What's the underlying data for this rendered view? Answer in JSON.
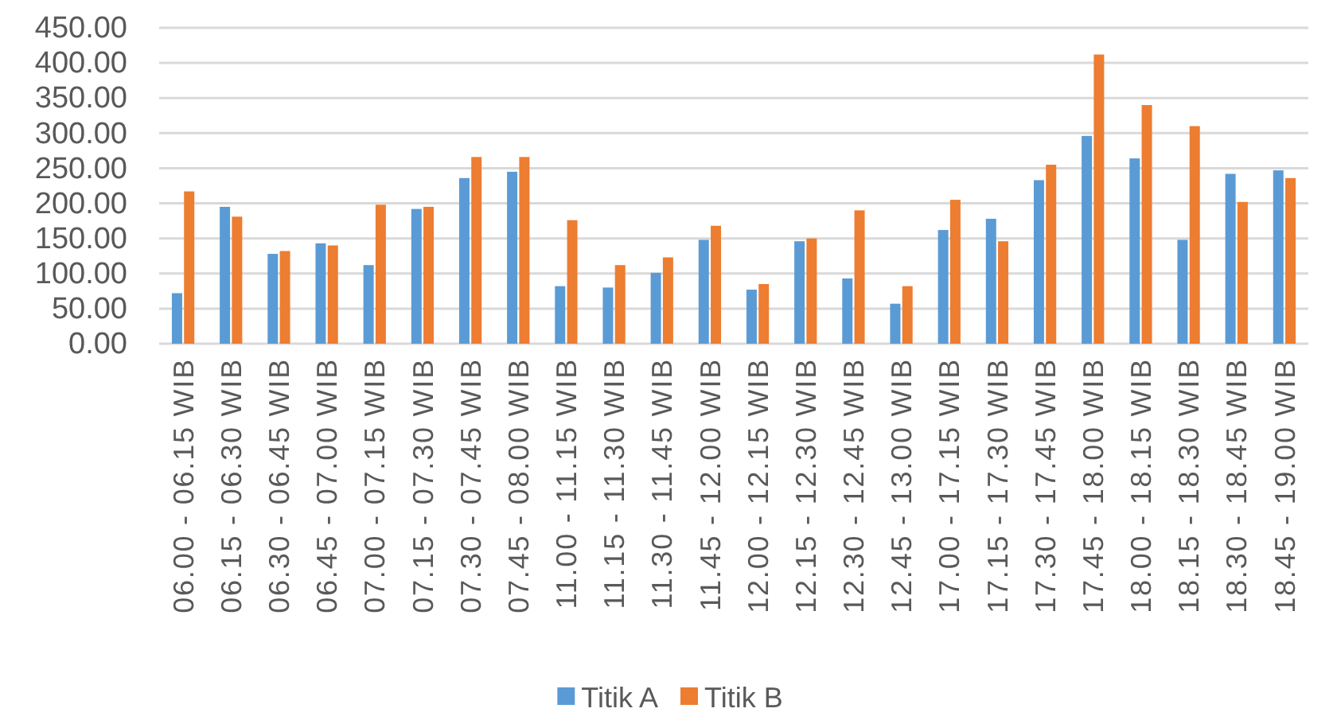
{
  "chart_data": {
    "type": "bar",
    "categories": [
      "06.00 - 06.15 WIB",
      "06.15 - 06.30 WIB",
      "06.30 - 06.45 WIB",
      "06.45 - 07.00 WIB",
      "07.00 - 07.15 WIB",
      "07.15 - 07.30 WIB",
      "07.30 - 07.45 WIB",
      "07.45 - 08.00 WIB",
      "11.00 - 11.15 WIB",
      "11.15 - 11.30 WIB",
      "11.30 - 11.45 WIB",
      "11.45 - 12.00 WIB",
      "12.00 - 12.15 WIB",
      "12.15 - 12.30 WIB",
      "12.30 - 12.45 WIB",
      "12.45 - 13.00 WIB",
      "17.00 - 17.15 WIB",
      "17.15 - 17.30 WIB",
      "17.30 - 17.45 WIB",
      "17.45 - 18.00 WIB",
      "18.00 - 18.15 WIB",
      "18.15 - 18.30 WIB",
      "18.30 - 18.45 WIB",
      "18.45 - 19.00 WIB"
    ],
    "series": [
      {
        "name": "Titik A",
        "color": "#5b9bd5",
        "values": [
          72,
          195,
          128,
          143,
          112,
          192,
          236,
          245,
          82,
          80,
          101,
          148,
          77,
          146,
          93,
          57,
          162,
          178,
          233,
          296,
          264,
          148,
          242,
          247
        ]
      },
      {
        "name": "Titik B",
        "color": "#ed7d31",
        "values": [
          217,
          181,
          132,
          140,
          198,
          195,
          266,
          266,
          176,
          112,
          123,
          168,
          85,
          150,
          190,
          82,
          205,
          146,
          255,
          412,
          340,
          310,
          202,
          236
        ]
      }
    ],
    "ylim": [
      0,
      450
    ],
    "yticks": [
      {
        "value": 0,
        "label": "0.00"
      },
      {
        "value": 50,
        "label": "50.00"
      },
      {
        "value": 100,
        "label": "100.00"
      },
      {
        "value": 150,
        "label": "150.00"
      },
      {
        "value": 200,
        "label": "200.00"
      },
      {
        "value": 250,
        "label": "250.00"
      },
      {
        "value": 300,
        "label": "300.00"
      },
      {
        "value": 350,
        "label": "350.00"
      },
      {
        "value": 400,
        "label": "400.00"
      },
      {
        "value": 450,
        "label": "450.00"
      }
    ],
    "grid": "y",
    "legend": "bottom"
  }
}
